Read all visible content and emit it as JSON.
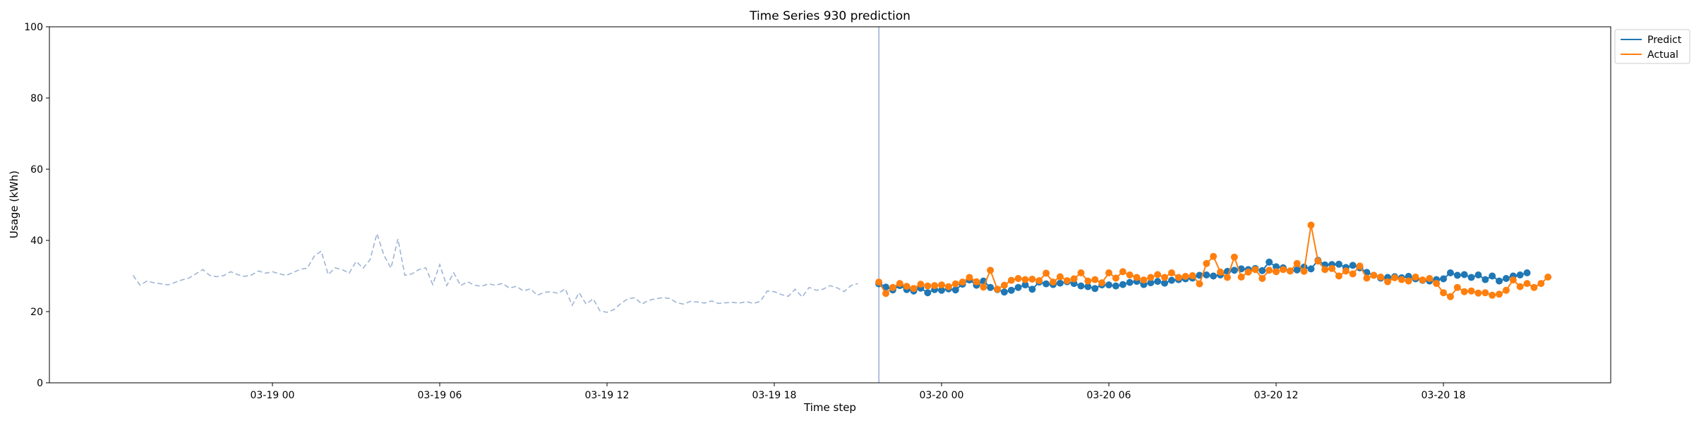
{
  "chart_data": {
    "type": "line",
    "title": "Time Series 930 prediction",
    "xlabel": "Time step",
    "ylabel": "Usage (kWh)",
    "ylim": [
      0,
      100
    ],
    "y_ticks": [
      0,
      20,
      40,
      60,
      80,
      100
    ],
    "xlim": [
      "2024-03-18 16:00",
      "2024-03-21 00:00"
    ],
    "x_ticks": [
      {
        "label": "03-19 00",
        "value": "2024-03-19 00:00"
      },
      {
        "label": "03-19 06",
        "value": "2024-03-19 06:00"
      },
      {
        "label": "03-19 12",
        "value": "2024-03-19 12:00"
      },
      {
        "label": "03-19 18",
        "value": "2024-03-19 18:00"
      },
      {
        "label": "03-20 00",
        "value": "2024-03-20 00:00"
      },
      {
        "label": "03-20 06",
        "value": "2024-03-20 06:00"
      },
      {
        "label": "03-20 12",
        "value": "2024-03-20 12:00"
      },
      {
        "label": "03-20 18",
        "value": "2024-03-20 18:00"
      }
    ],
    "interval_minutes": 15,
    "forecast_start": "2024-03-19 21:45",
    "legend": {
      "placement": "top-right",
      "entries": [
        "Predict",
        "Actual"
      ]
    },
    "grid": false,
    "series": [
      {
        "name": "history",
        "style": "dashed",
        "color": "#9fb4d4",
        "start": "2024-03-18 19:00",
        "values": [
          30.2,
          27.4,
          28.6,
          28.1,
          27.8,
          27.5,
          28.2,
          28.9,
          29.4,
          30.6,
          31.8,
          30.2,
          29.8,
          30.1,
          31.2,
          30.4,
          29.9,
          30.3,
          31.4,
          30.8,
          31.2,
          30.6,
          30.2,
          31.0,
          31.9,
          32.2,
          35.6,
          37.0,
          30.4,
          32.3,
          31.8,
          30.8,
          34.1,
          32.2,
          34.6,
          41.9,
          35.8,
          32.2,
          40.4,
          30.2,
          30.6,
          31.8,
          32.3,
          27.6,
          33.2,
          27.3,
          30.9,
          27.3,
          28.4,
          27.4,
          27.1,
          27.8,
          27.4,
          27.9,
          26.6,
          27.1,
          25.8,
          26.4,
          24.6,
          25.4,
          25.6,
          25.1,
          26.4,
          21.8,
          25.3,
          22.1,
          23.6,
          20.2,
          19.8,
          20.6,
          22.3,
          23.6,
          23.9,
          22.1,
          23.2,
          23.6,
          23.9,
          23.7,
          22.5,
          22.1,
          22.9,
          22.7,
          22.4,
          23.0,
          22.3,
          22.5,
          22.6,
          22.4,
          22.8,
          22.3,
          22.9,
          25.8,
          25.6,
          24.8,
          24.3,
          26.3,
          24.1,
          26.8,
          26.0,
          26.3,
          27.3,
          26.7,
          25.6,
          27.3,
          27.9
        ]
      },
      {
        "name": "Predict",
        "style": "solid-markers",
        "color": "#1f77b4",
        "start": "2024-03-19 21:45",
        "values": [
          27.8,
          26.9,
          26.1,
          27.3,
          26.2,
          25.8,
          26.6,
          25.3,
          26.2,
          26.0,
          26.4,
          26.1,
          27.7,
          28.9,
          27.4,
          28.6,
          26.8,
          26.2,
          25.5,
          26.0,
          26.8,
          27.5,
          26.3,
          28.3,
          27.8,
          27.6,
          28.0,
          28.4,
          27.9,
          27.2,
          27.0,
          26.5,
          27.5,
          27.5,
          27.2,
          27.6,
          28.2,
          28.5,
          27.6,
          28.1,
          28.5,
          28.0,
          28.8,
          29.0,
          29.2,
          29.4,
          30.2,
          30.3,
          30.0,
          30.3,
          31.3,
          31.6,
          32.0,
          31.8,
          32.1,
          31.5,
          33.9,
          32.6,
          32.3,
          31.4,
          31.7,
          32.5,
          32.0,
          34.4,
          33.1,
          33.2,
          33.3,
          32.4,
          33.0,
          32.3,
          31.0,
          30.2,
          29.4,
          29.6,
          29.8,
          29.5,
          29.9,
          29.2,
          28.8,
          28.6,
          29.0,
          29.2,
          30.9,
          30.2,
          30.4,
          29.6,
          30.3,
          29.0,
          30.0,
          28.6,
          29.3,
          30.0,
          30.3,
          30.9
        ]
      },
      {
        "name": "Actual",
        "style": "solid-markers",
        "color": "#ff7f0e",
        "start": "2024-03-19 21:45",
        "values": [
          28.3,
          25.1,
          26.8,
          27.9,
          27.1,
          26.5,
          27.7,
          27.2,
          27.3,
          27.5,
          27.0,
          27.8,
          28.3,
          29.6,
          28.4,
          26.9,
          31.6,
          26.3,
          27.4,
          28.8,
          29.3,
          29.0,
          29.1,
          28.7,
          30.8,
          28.3,
          29.8,
          28.7,
          29.2,
          30.9,
          28.6,
          29.0,
          28.1,
          30.9,
          29.4,
          31.2,
          30.3,
          29.6,
          28.9,
          29.6,
          30.4,
          29.6,
          30.9,
          29.6,
          29.9,
          30.1,
          27.8,
          33.5,
          35.5,
          31.1,
          29.6,
          35.3,
          29.7,
          31.1,
          31.8,
          29.3,
          31.6,
          31.2,
          31.8,
          31.4,
          33.5,
          31.3,
          44.3,
          34.2,
          31.8,
          32.1,
          30.0,
          31.4,
          30.6,
          32.8,
          29.4,
          30.2,
          29.7,
          28.4,
          29.5,
          29.0,
          28.6,
          29.7,
          28.9,
          29.3,
          27.9,
          25.3,
          24.2,
          26.8,
          25.6,
          25.8,
          25.2,
          25.3,
          24.6,
          24.9,
          26.0,
          28.9,
          27.0,
          27.9,
          26.8,
          27.9,
          29.7
        ]
      }
    ]
  }
}
